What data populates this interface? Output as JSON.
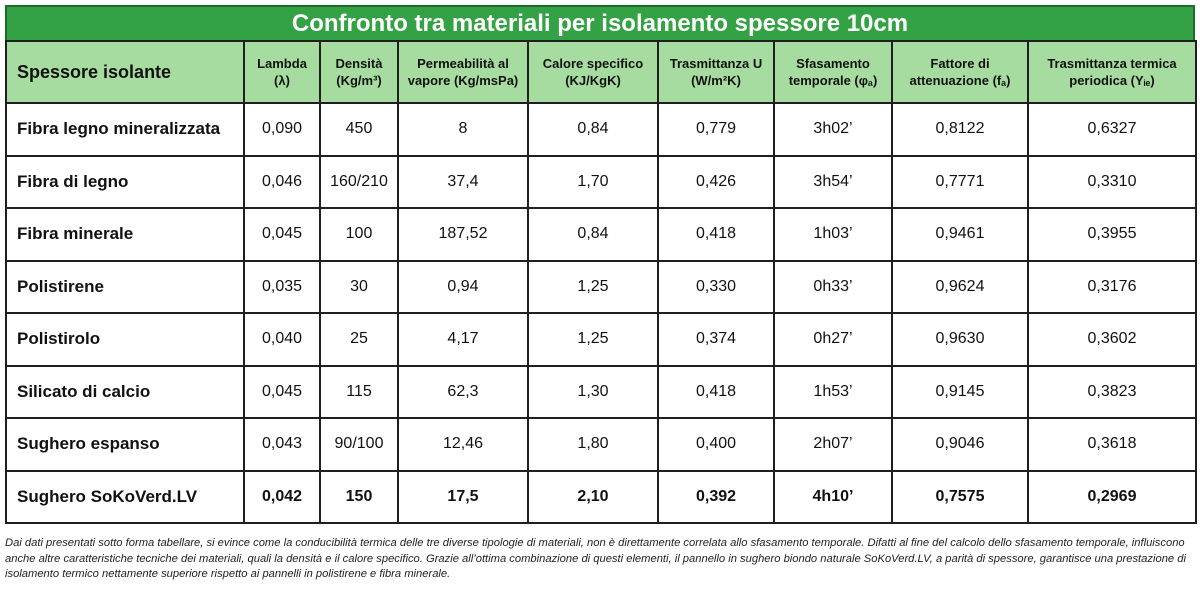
{
  "chart_data": {
    "type": "table",
    "title": "Confronto tra materiali per isolamento spessore 10cm",
    "columns": [
      "Spessore isolante",
      "Lambda (λ)",
      "Densità (Kg/m³)",
      "Permeabilità al vapore (Kg/msPa)",
      "Calore specifico (KJ/KgK)",
      "Trasmittanza U (W/m²K)",
      "Sfasamento temporale (φₐ)",
      "Fattore di attenuazione (fₐ)",
      "Trasmittanza termica periodica (Yᵢₑ)"
    ],
    "rows": [
      [
        "Fibra legno mineralizzata",
        "0,090",
        "450",
        "8",
        "0,84",
        "0,779",
        "3h02’",
        "0,8122",
        "0,6327"
      ],
      [
        "Fibra di legno",
        "0,046",
        "160/210",
        "37,4",
        "1,70",
        "0,426",
        "3h54’",
        "0,7771",
        "0,3310"
      ],
      [
        "Fibra minerale",
        "0,045",
        "100",
        "187,52",
        "0,84",
        "0,418",
        "1h03’",
        "0,9461",
        "0,3955"
      ],
      [
        "Polistirene",
        "0,035",
        "30",
        "0,94",
        "1,25",
        "0,330",
        "0h33’",
        "0,9624",
        "0,3176"
      ],
      [
        "Polistirolo",
        "0,040",
        "25",
        "4,17",
        "1,25",
        "0,374",
        "0h27’",
        "0,9630",
        "0,3602"
      ],
      [
        "Silicato di calcio",
        "0,045",
        "115",
        "62,3",
        "1,30",
        "0,418",
        "1h53’",
        "0,9145",
        "0,3823"
      ],
      [
        "Sughero espanso",
        "0,043",
        "90/100",
        "12,46",
        "1,80",
        "0,400",
        "2h07’",
        "0,9046",
        "0,3618"
      ],
      [
        "Sughero SoKoVerd.LV",
        "0,042",
        "150",
        "17,5",
        "2,10",
        "0,392",
        "4h10’",
        "0,7575",
        "0,2969"
      ]
    ],
    "highlight_row": 7
  },
  "colors": {
    "title_bg": "#33a244",
    "header_bg": "#a7dca0"
  },
  "note": "Dai dati presentati sotto forma tabellare, si evince come la conducibilità termica delle tre diverse tipologie di materiali, non è direttamente correlata allo sfasamento temporale. Difatti al fine del calcolo dello sfasamento temporale, influiscono anche altre caratteristiche tecniche dei materiali, quali la densità e il calore specifico. Grazie all’ottima combinazione di questi elementi, il pannello in sughero biondo naturale SoKoVerd.LV, a parità di spessore, garantisce una prestazione di isolamento termico nettamente superiore rispetto ai pannelli in polistirene e fibra minerale."
}
